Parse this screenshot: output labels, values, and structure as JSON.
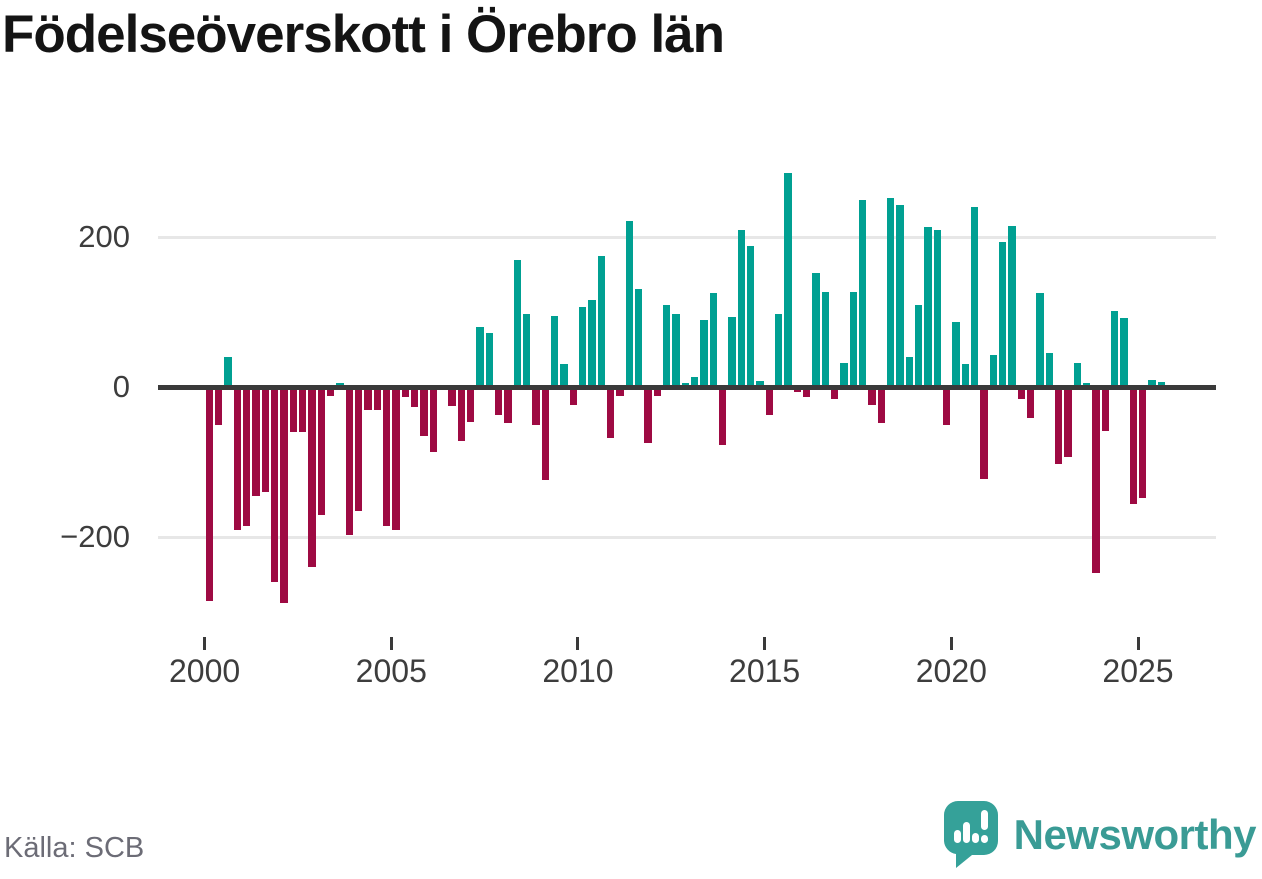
{
  "title": "Födelseöverskott i Örebro län",
  "source": {
    "text": "Källa: SCB"
  },
  "branding": {
    "name": "Newsworthy"
  },
  "colors": {
    "positive": "#00a092",
    "negative": "#9e0a43",
    "zero_line": "#3a3a3a",
    "gridline": "#e7e7e7",
    "label": "#3d3d3d",
    "logo": "#35a199",
    "logo_text": "#3a9b95"
  },
  "chart_data": {
    "type": "bar",
    "title": "Födelseöverskott i Örebro län",
    "xlabel": "",
    "ylabel": "",
    "x_start": "2000 Q1",
    "x_end": "2025 Q3",
    "frequency": "quarterly",
    "x_tick_years": [
      2000,
      2005,
      2010,
      2015,
      2020,
      2025
    ],
    "y_ticks": [
      200,
      0,
      -200
    ],
    "ylim": [
      -310,
      300
    ],
    "grid": "horizontal",
    "legend_position": "none",
    "values": [
      -285,
      -50,
      40,
      -190,
      -185,
      -145,
      -140,
      -260,
      -288,
      -60,
      -60,
      -240,
      -170,
      -12,
      5,
      -197,
      -165,
      -30,
      -30,
      -185,
      -190,
      -13,
      -26,
      -65,
      -86,
      0,
      -25,
      -72,
      -46,
      80,
      72,
      -37,
      -48,
      170,
      98,
      -51,
      -124,
      95,
      31,
      -24,
      107,
      116,
      175,
      -68,
      -12,
      222,
      131,
      -75,
      -12,
      110,
      97,
      6,
      14,
      90,
      125,
      -77,
      94,
      210,
      188,
      8,
      -37,
      97,
      285,
      -6,
      -13,
      152,
      127,
      -16,
      32,
      127,
      249,
      -24,
      -48,
      252,
      243,
      40,
      109,
      214,
      210,
      -50,
      87,
      31,
      240,
      -123,
      43,
      193,
      215,
      -16,
      -41,
      126,
      46,
      -103,
      -93,
      32,
      5,
      -248,
      -58,
      102,
      92,
      -156,
      -148,
      10,
      7
    ]
  }
}
